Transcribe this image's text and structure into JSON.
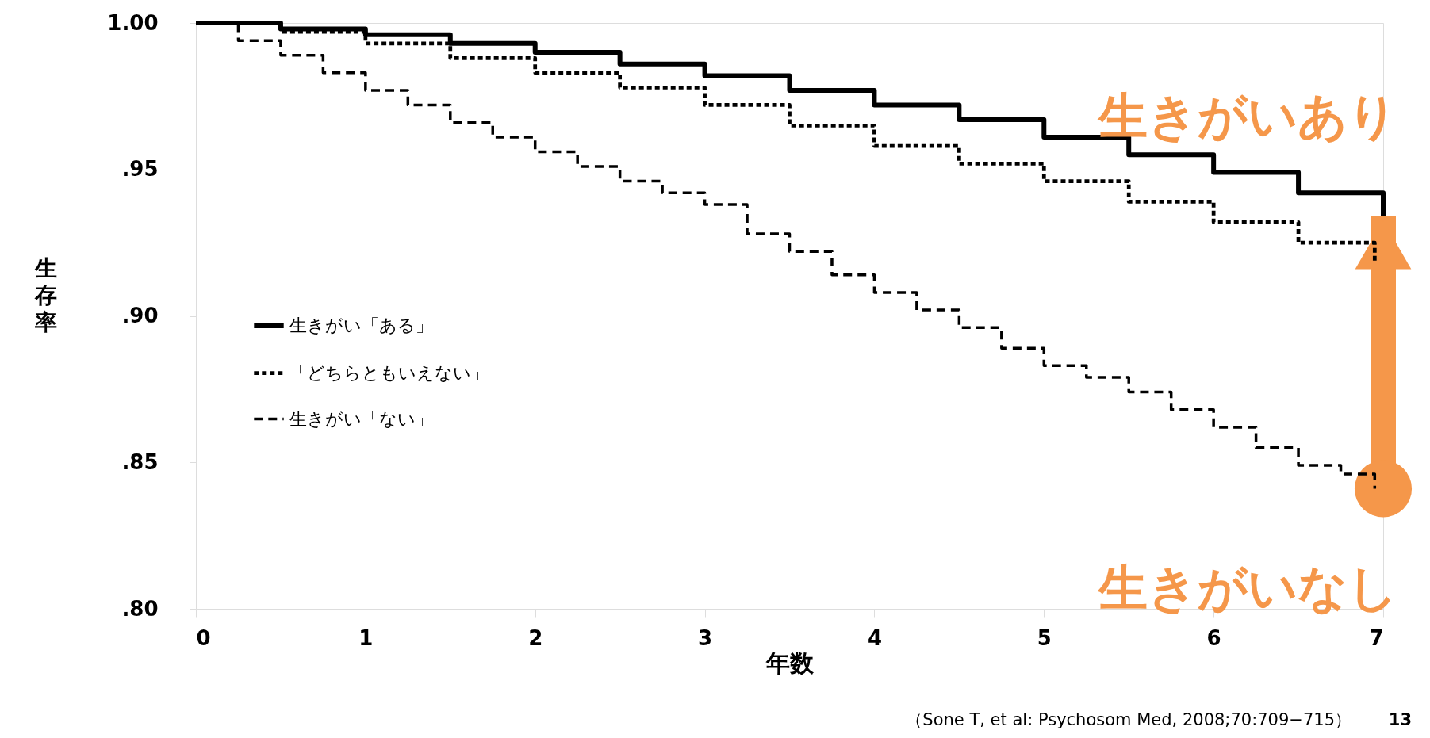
{
  "chart_data": {
    "type": "step",
    "xlabel": "年数",
    "ylabel": "生存率",
    "xlim": [
      0,
      7
    ],
    "ylim": [
      0.8,
      1.0
    ],
    "xticks": [
      0,
      1,
      2,
      3,
      4,
      5,
      6,
      7
    ],
    "legend": "left",
    "yticks": [
      {
        "value": 0.8,
        "label": ".80"
      },
      {
        "value": 0.85,
        "label": ".85"
      },
      {
        "value": 0.9,
        "label": ".90"
      },
      {
        "value": 0.95,
        "label": ".95"
      },
      {
        "value": 1.0,
        "label": "1.00"
      }
    ],
    "grid": false,
    "series": [
      {
        "name": "生きがい「ある」",
        "color": "#000000",
        "line_style": "solid",
        "x": [
          0,
          0.5,
          1,
          1.5,
          2,
          2.5,
          3,
          3.5,
          4,
          4.5,
          5,
          5.5,
          6,
          6.5,
          7
        ],
        "values": [
          1.0,
          0.998,
          0.996,
          0.993,
          0.99,
          0.986,
          0.982,
          0.977,
          0.972,
          0.967,
          0.961,
          0.955,
          0.949,
          0.942,
          0.934
        ]
      },
      {
        "name": "「どちらともいえない」",
        "color": "#000000",
        "line_style": "dotted",
        "x": [
          0,
          0.5,
          1,
          1.5,
          2,
          2.5,
          3,
          3.5,
          4,
          4.5,
          5,
          5.5,
          6,
          6.5,
          6.95
        ],
        "values": [
          1.0,
          0.997,
          0.993,
          0.988,
          0.983,
          0.978,
          0.972,
          0.965,
          0.958,
          0.952,
          0.946,
          0.939,
          0.932,
          0.925,
          0.918
        ]
      },
      {
        "name": "生きがい「ない」",
        "color": "#000000",
        "line_style": "dashed",
        "x": [
          0,
          0.25,
          0.5,
          0.75,
          1,
          1.25,
          1.5,
          1.75,
          2,
          2.25,
          2.5,
          2.75,
          3,
          3.25,
          3.5,
          3.75,
          4,
          4.25,
          4.5,
          4.75,
          5,
          5.25,
          5.5,
          5.75,
          6,
          6.25,
          6.5,
          6.75,
          6.95
        ],
        "values": [
          1.0,
          0.994,
          0.989,
          0.983,
          0.977,
          0.972,
          0.966,
          0.961,
          0.956,
          0.951,
          0.946,
          0.942,
          0.938,
          0.928,
          0.922,
          0.914,
          0.908,
          0.902,
          0.896,
          0.889,
          0.883,
          0.879,
          0.874,
          0.868,
          0.862,
          0.855,
          0.849,
          0.846,
          0.841
        ]
      }
    ],
    "annotations": [
      "生きがいあり",
      "生きがいなし",
      "（Sone T, et al: Psychosom Med, 2008;70:709−715）",
      "13"
    ]
  }
}
